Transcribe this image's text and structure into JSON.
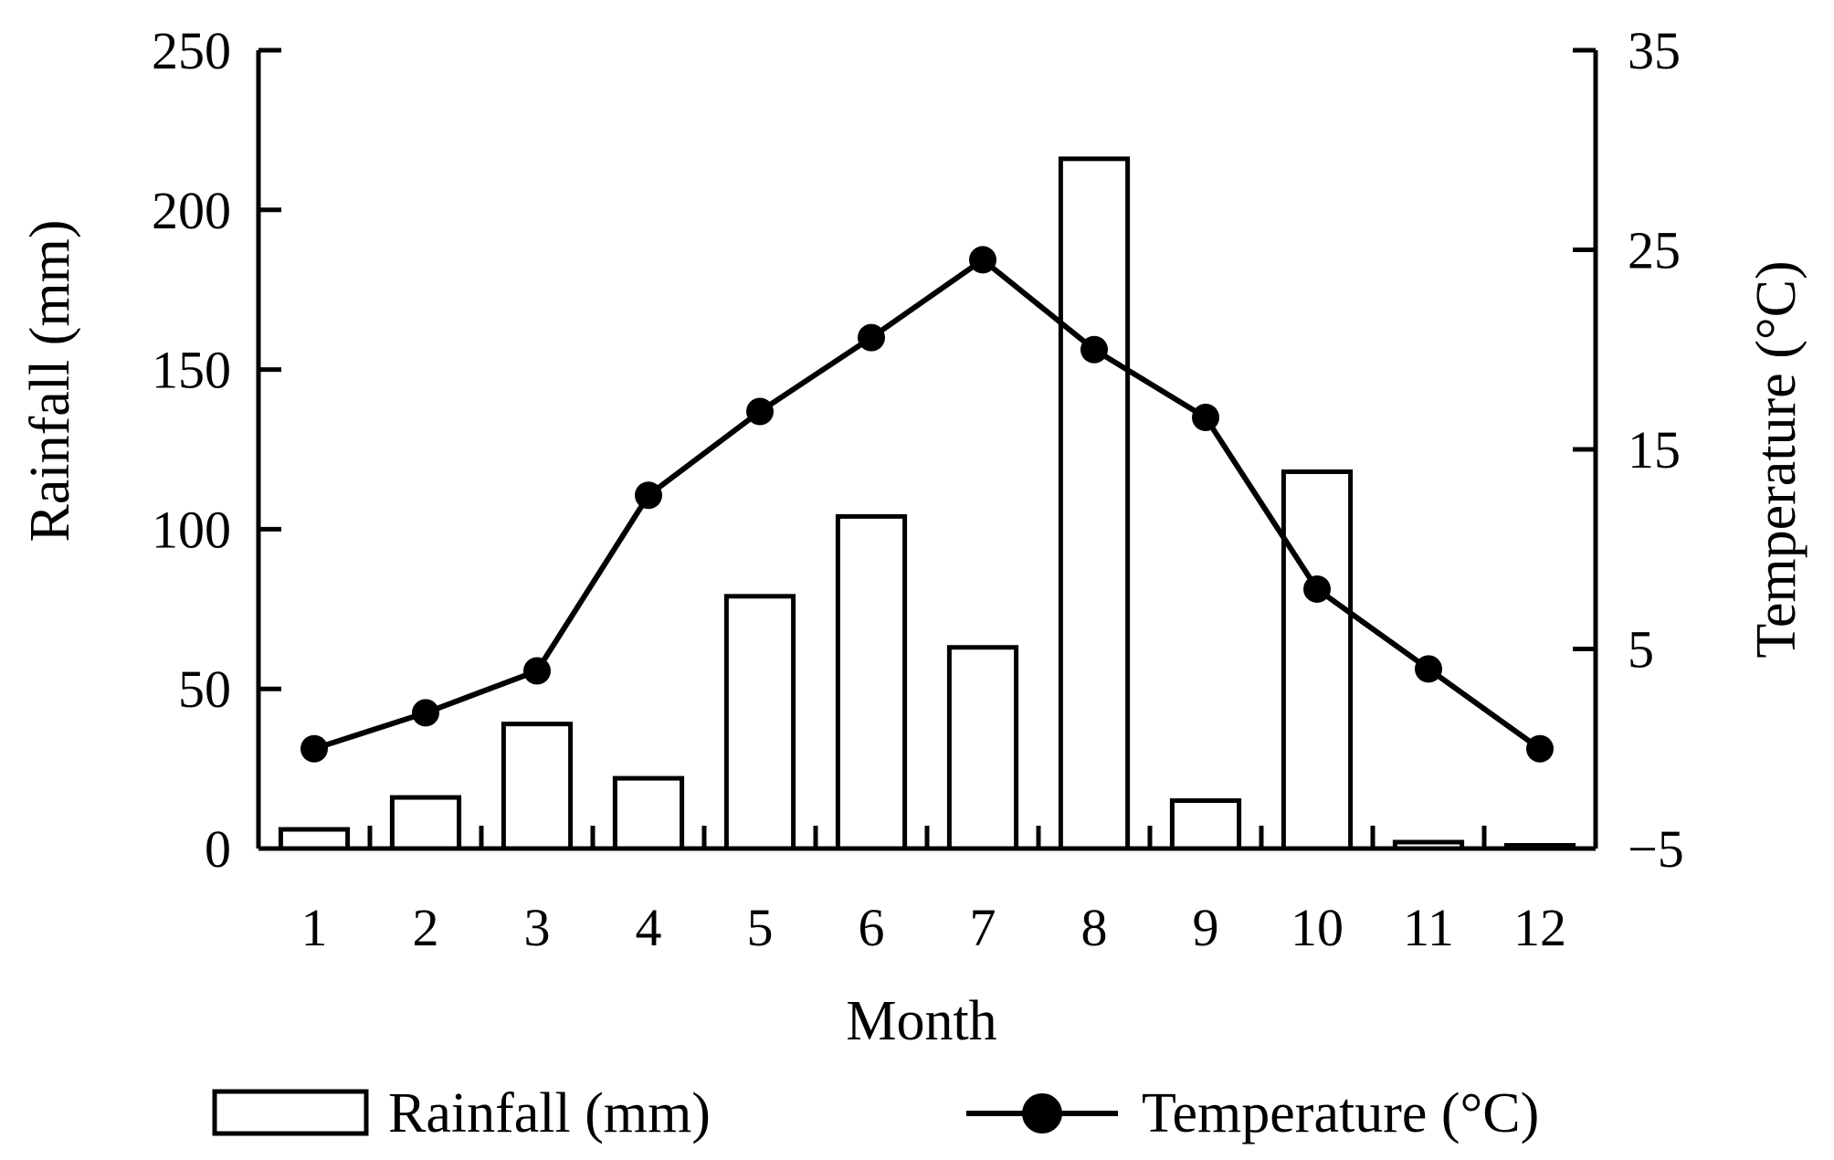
{
  "chart_data": {
    "type": "bar",
    "title": "",
    "xlabel": "Month",
    "ylabel": "Rainfall (mm)",
    "y2label": "Temperature (°C)",
    "categories": [
      "1",
      "2",
      "3",
      "4",
      "5",
      "6",
      "7",
      "8",
      "9",
      "10",
      "11",
      "12"
    ],
    "ylim": [
      0,
      250
    ],
    "yticks": [
      0,
      50,
      100,
      150,
      200,
      250
    ],
    "y2lim": [
      -5,
      35
    ],
    "y2ticks": [
      -5,
      5,
      15,
      25,
      35
    ],
    "y2tick_labels": [
      "−5",
      "5",
      "15",
      "25",
      "35"
    ],
    "series": [
      {
        "name": "Rainfall (mm)",
        "type": "bar",
        "axis": "left",
        "color": "#ffffff",
        "values": [
          6,
          16,
          39,
          22,
          79,
          104,
          63,
          216,
          15,
          118,
          2,
          1
        ]
      },
      {
        "name": "Temperature (°C)",
        "type": "line",
        "axis": "right",
        "color": "#000000",
        "values": [
          0,
          1.8,
          3.9,
          12.7,
          16.9,
          20.6,
          24.5,
          20.0,
          16.6,
          8.0,
          4.0,
          0
        ]
      }
    ],
    "legend_position": "bottom",
    "grid": false
  }
}
